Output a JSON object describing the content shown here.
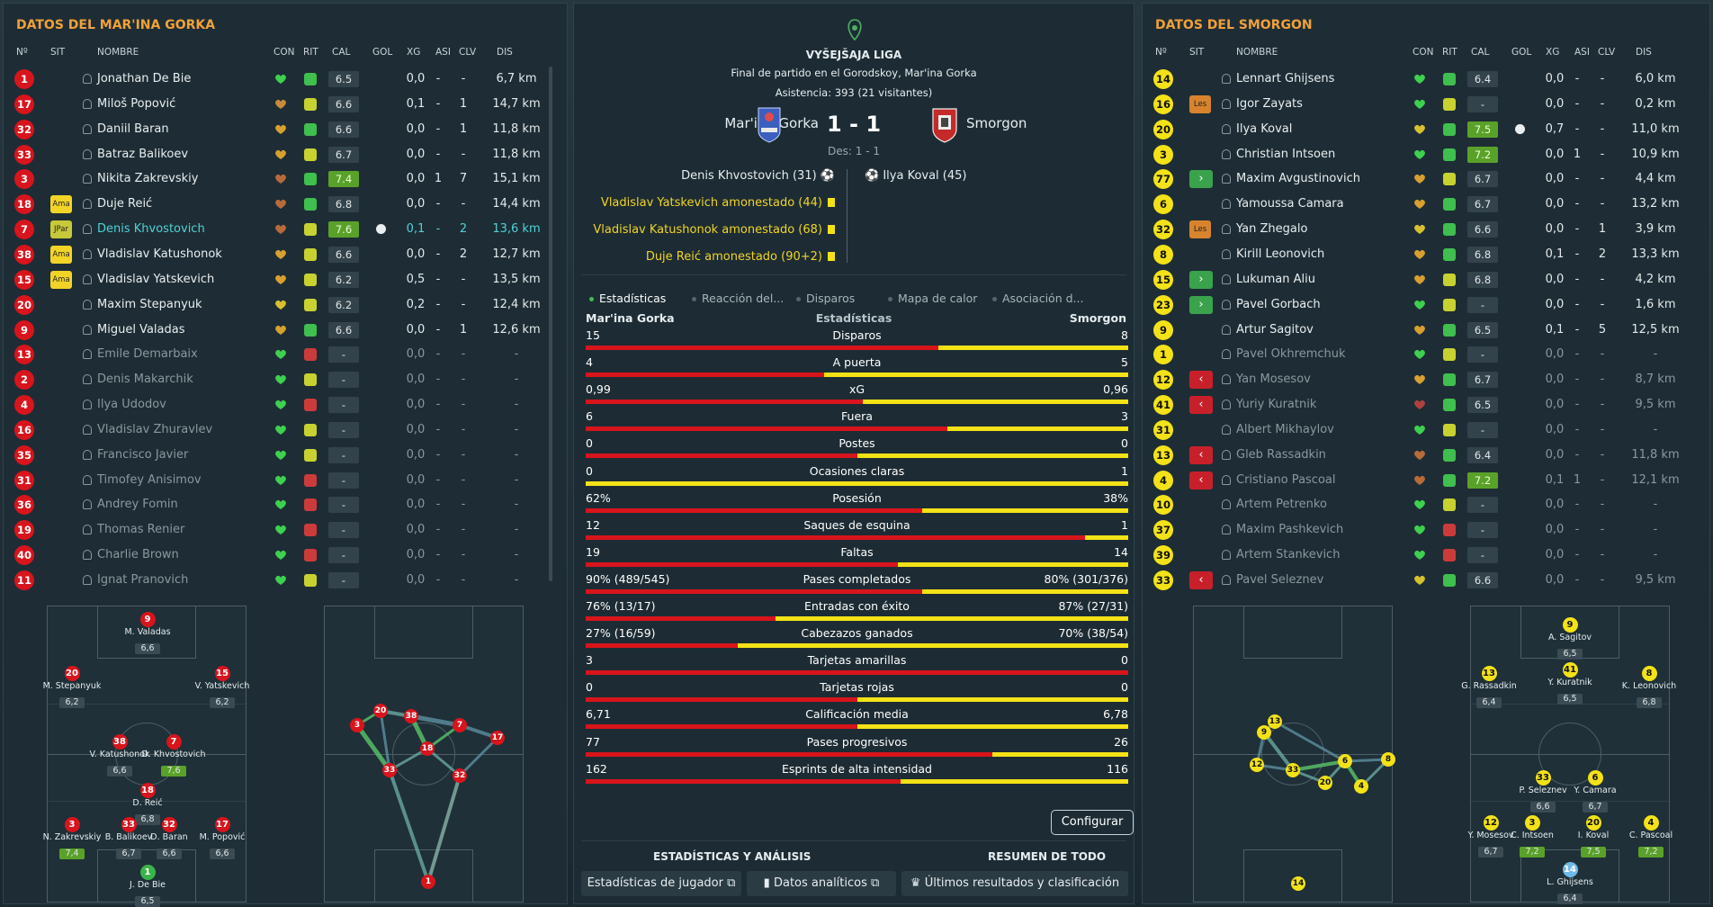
{
  "left": {
    "title": "DATOS DEL MAR'INA GORKA",
    "headers": [
      "Nº",
      "SIT",
      "NOMBRE",
      "CON",
      "RIT",
      "CAL",
      "GOL",
      "XG",
      "ASI",
      "CLV",
      "DIS"
    ],
    "players": [
      {
        "num": "1",
        "sit": "",
        "name": "Jonathan De Bie",
        "heart": "#3ed04f",
        "rit": "g",
        "cal": "6.5",
        "calg": false,
        "gol": false,
        "xg": "0,0",
        "asi": "-",
        "clv": "-",
        "dis": "6,7 km",
        "dim": false
      },
      {
        "num": "17",
        "sit": "",
        "name": "Miloš Popović",
        "heart": "#c98a3a",
        "rit": "yl",
        "cal": "6.6",
        "calg": false,
        "gol": false,
        "xg": "0,1",
        "asi": "-",
        "clv": "1",
        "dis": "14,7 km",
        "dim": false
      },
      {
        "num": "32",
        "sit": "",
        "name": "Daniil Baran",
        "heart": "#d7a02f",
        "rit": "g",
        "cal": "6.6",
        "calg": false,
        "gol": false,
        "xg": "0,0",
        "asi": "-",
        "clv": "1",
        "dis": "11,8 km",
        "dim": false
      },
      {
        "num": "33",
        "sit": "",
        "name": "Batraz Balikoev",
        "heart": "#d7a02f",
        "rit": "yl",
        "cal": "6.7",
        "calg": false,
        "gol": false,
        "xg": "0,0",
        "asi": "-",
        "clv": "-",
        "dis": "11,8 km",
        "dim": false
      },
      {
        "num": "3",
        "sit": "",
        "name": "Nikita Zakrevskiy",
        "heart": "#b86b3a",
        "rit": "g",
        "cal": "7.4",
        "calg": true,
        "gol": false,
        "xg": "0,0",
        "asi": "1",
        "clv": "7",
        "dis": "15,1 km",
        "dim": false
      },
      {
        "num": "18",
        "sit": "Ama",
        "name": "Duje Reić",
        "heart": "#b86b3a",
        "rit": "g",
        "cal": "6.8",
        "calg": false,
        "gol": false,
        "xg": "0,0",
        "asi": "-",
        "clv": "-",
        "dis": "14,4 km",
        "dim": false
      },
      {
        "num": "7",
        "sit": "JPar",
        "name": "Denis Khvostovich",
        "heart": "#b86b3a",
        "rit": "yl",
        "cal": "7.6",
        "calg": true,
        "gol": true,
        "xg": "0,1",
        "asi": "-",
        "clv": "2",
        "dis": "13,6 km",
        "dim": false,
        "sel": true
      },
      {
        "num": "38",
        "sit": "Ama",
        "name": "Vladislav Katushonok",
        "heart": "#d7a02f",
        "rit": "yl",
        "cal": "6.6",
        "calg": false,
        "gol": false,
        "xg": "0,0",
        "asi": "-",
        "clv": "2",
        "dis": "12,7 km",
        "dim": false
      },
      {
        "num": "15",
        "sit": "Ama",
        "name": "Vladislav Yatskevich",
        "heart": "#d7a02f",
        "rit": "yl",
        "cal": "6.2",
        "calg": false,
        "gol": false,
        "xg": "0,5",
        "asi": "-",
        "clv": "-",
        "dis": "13,5 km",
        "dim": false
      },
      {
        "num": "20",
        "sit": "",
        "name": "Maxim Stepanyuk",
        "heart": "#d7c02f",
        "rit": "yl",
        "cal": "6.2",
        "calg": false,
        "gol": false,
        "xg": "0,2",
        "asi": "-",
        "clv": "-",
        "dis": "12,4 km",
        "dim": false
      },
      {
        "num": "9",
        "sit": "",
        "name": "Miguel Valadas",
        "heart": "#d7a02f",
        "rit": "g",
        "cal": "6.6",
        "calg": false,
        "gol": false,
        "xg": "0,0",
        "asi": "-",
        "clv": "1",
        "dis": "12,6 km",
        "dim": false
      },
      {
        "num": "13",
        "sit": "",
        "name": "Emile Demarbaix",
        "heart": "#3ed04f",
        "rit": "r",
        "cal": "-",
        "calg": false,
        "gol": false,
        "xg": "0,0",
        "asi": "-",
        "clv": "-",
        "dis": "-",
        "dim": true
      },
      {
        "num": "2",
        "sit": "",
        "name": "Denis Makarchik",
        "heart": "#3ed04f",
        "rit": "yl",
        "cal": "-",
        "calg": false,
        "gol": false,
        "xg": "0,0",
        "asi": "-",
        "clv": "-",
        "dis": "-",
        "dim": true
      },
      {
        "num": "4",
        "sit": "",
        "name": "Ilya Udodov",
        "heart": "#3ed04f",
        "rit": "r",
        "cal": "-",
        "calg": false,
        "gol": false,
        "xg": "0,0",
        "asi": "-",
        "clv": "-",
        "dis": "-",
        "dim": true
      },
      {
        "num": "16",
        "sit": "",
        "name": "Vladislav Zhuravlev",
        "heart": "#3ed04f",
        "rit": "yl",
        "cal": "-",
        "calg": false,
        "gol": false,
        "xg": "0,0",
        "asi": "-",
        "clv": "-",
        "dis": "-",
        "dim": true
      },
      {
        "num": "35",
        "sit": "",
        "name": "Francisco Javier",
        "heart": "#3ed04f",
        "rit": "yl",
        "cal": "-",
        "calg": false,
        "gol": false,
        "xg": "0,0",
        "asi": "-",
        "clv": "-",
        "dis": "-",
        "dim": true
      },
      {
        "num": "31",
        "sit": "",
        "name": "Timofey Anisimov",
        "heart": "#3ed04f",
        "rit": "r",
        "cal": "-",
        "calg": false,
        "gol": false,
        "xg": "0,0",
        "asi": "-",
        "clv": "-",
        "dis": "-",
        "dim": true
      },
      {
        "num": "36",
        "sit": "",
        "name": "Andrey Fomin",
        "heart": "#3ed04f",
        "rit": "r",
        "cal": "-",
        "calg": false,
        "gol": false,
        "xg": "0,0",
        "asi": "-",
        "clv": "-",
        "dis": "-",
        "dim": true
      },
      {
        "num": "19",
        "sit": "",
        "name": "Thomas Renier",
        "heart": "#3ed04f",
        "rit": "r",
        "cal": "-",
        "calg": false,
        "gol": false,
        "xg": "0,0",
        "asi": "-",
        "clv": "-",
        "dis": "-",
        "dim": true
      },
      {
        "num": "40",
        "sit": "",
        "name": "Charlie Brown",
        "heart": "#3ed04f",
        "rit": "r",
        "cal": "-",
        "calg": false,
        "gol": false,
        "xg": "0,0",
        "asi": "-",
        "clv": "-",
        "dis": "-",
        "dim": true
      },
      {
        "num": "11",
        "sit": "",
        "name": "Ignat Pranovich",
        "heart": "#3ed04f",
        "rit": "yl",
        "cal": "-",
        "calg": false,
        "gol": false,
        "xg": "0,0",
        "asi": "-",
        "clv": "-",
        "dis": "-",
        "dim": true
      }
    ],
    "formation": [
      {
        "num": "9",
        "name": "M. Valadas",
        "rating": "6,6",
        "g": false
      },
      {
        "num": "20",
        "name": "M. Stepanyuk",
        "rating": "6,2",
        "g": false
      },
      {
        "num": "15",
        "name": "V. Yatskevich",
        "rating": "6,2",
        "g": false
      },
      {
        "num": "38",
        "name": "V. Katushonok",
        "rating": "6,6",
        "g": false
      },
      {
        "num": "7",
        "name": "D. Khvostovich",
        "rating": "7,6",
        "g": true
      },
      {
        "num": "18",
        "name": "D. Reić",
        "rating": "6,8",
        "g": false
      },
      {
        "num": "3",
        "name": "N. Zakrevskiy",
        "rating": "7,4",
        "g": true
      },
      {
        "num": "33",
        "name": "B. Balikoev",
        "rating": "6,7",
        "g": false
      },
      {
        "num": "32",
        "name": "D. Baran",
        "rating": "6,6",
        "g": false
      },
      {
        "num": "17",
        "name": "M. Popović",
        "rating": "6,6",
        "g": false
      },
      {
        "num": "1",
        "name": "J. De Bie",
        "rating": "6,5",
        "g": false
      }
    ],
    "network": [
      "3",
      "20",
      "38",
      "7",
      "17",
      "18",
      "33",
      "32",
      "1"
    ]
  },
  "right": {
    "title": "DATOS DEL SMORGON",
    "headers": [
      "Nº",
      "SIT",
      "NOMBRE",
      "CON",
      "RIT",
      "CAL",
      "GOL",
      "XG",
      "ASI",
      "CLV",
      "DIS"
    ],
    "players": [
      {
        "num": "14",
        "sit": "",
        "name": "Lennart Ghijsens",
        "heart": "#3ed04f",
        "rit": "g",
        "cal": "6.4",
        "calg": false,
        "gol": false,
        "xg": "0,0",
        "asi": "-",
        "clv": "-",
        "dis": "6,0 km",
        "dim": false
      },
      {
        "num": "16",
        "sit": "Les",
        "name": "Igor Zayats",
        "heart": "#3ed04f",
        "rit": "yl",
        "cal": "-",
        "calg": false,
        "gol": false,
        "xg": "0,0",
        "asi": "-",
        "clv": "-",
        "dis": "0,2 km",
        "dim": false
      },
      {
        "num": "20",
        "sit": "",
        "name": "Ilya Koval",
        "heart": "#d7c02f",
        "rit": "g",
        "cal": "7.5",
        "calg": true,
        "gol": true,
        "xg": "0,7",
        "asi": "-",
        "clv": "-",
        "dis": "11,0 km",
        "dim": false
      },
      {
        "num": "3",
        "sit": "",
        "name": "Christian Intsoen",
        "heart": "#3ed04f",
        "rit": "g",
        "cal": "7.2",
        "calg": true,
        "gol": false,
        "xg": "0,0",
        "asi": "1",
        "clv": "-",
        "dis": "10,9 km",
        "dim": false
      },
      {
        "num": "77",
        "sit": "in",
        "name": "Maxim Avgustinovich",
        "heart": "#d7a02f",
        "rit": "yl",
        "cal": "6.7",
        "calg": false,
        "gol": false,
        "xg": "0,0",
        "asi": "-",
        "clv": "-",
        "dis": "4,4 km",
        "dim": false
      },
      {
        "num": "6",
        "sit": "",
        "name": "Yamoussa Camara",
        "heart": "#d7a02f",
        "rit": "g",
        "cal": "6.7",
        "calg": false,
        "gol": false,
        "xg": "0,0",
        "asi": "-",
        "clv": "-",
        "dis": "13,2 km",
        "dim": false
      },
      {
        "num": "32",
        "sit": "Les",
        "name": "Yan Zhegalo",
        "heart": "#d7c02f",
        "rit": "g",
        "cal": "6.6",
        "calg": false,
        "gol": false,
        "xg": "0,0",
        "asi": "-",
        "clv": "1",
        "dis": "3,9 km",
        "dim": false
      },
      {
        "num": "8",
        "sit": "",
        "name": "Kirill Leonovich",
        "heart": "#d7a02f",
        "rit": "g",
        "cal": "6.8",
        "calg": false,
        "gol": false,
        "xg": "0,1",
        "asi": "-",
        "clv": "2",
        "dis": "13,3 km",
        "dim": false
      },
      {
        "num": "15",
        "sit": "in",
        "name": "Lukuman Aliu",
        "heart": "#d7a02f",
        "rit": "yl",
        "cal": "6.8",
        "calg": false,
        "gol": false,
        "xg": "0,0",
        "asi": "-",
        "clv": "-",
        "dis": "4,2 km",
        "dim": false
      },
      {
        "num": "23",
        "sit": "in",
        "name": "Pavel Gorbach",
        "heart": "#3ed04f",
        "rit": "yl",
        "cal": "-",
        "calg": false,
        "gol": false,
        "xg": "0,0",
        "asi": "-",
        "clv": "-",
        "dis": "1,6 km",
        "dim": false
      },
      {
        "num": "9",
        "sit": "",
        "name": "Artur Sagitov",
        "heart": "#d7a02f",
        "rit": "g",
        "cal": "6.5",
        "calg": false,
        "gol": false,
        "xg": "0,1",
        "asi": "-",
        "clv": "5",
        "dis": "12,5 km",
        "dim": false
      },
      {
        "num": "1",
        "sit": "",
        "name": "Pavel Okhremchuk",
        "heart": "#3ed04f",
        "rit": "yl",
        "cal": "-",
        "calg": false,
        "gol": false,
        "xg": "0,0",
        "asi": "-",
        "clv": "-",
        "dis": "-",
        "dim": true
      },
      {
        "num": "12",
        "sit": "out",
        "name": "Yan Mosesov",
        "heart": "#d7a02f",
        "rit": "g",
        "cal": "6.7",
        "calg": false,
        "gol": false,
        "xg": "0,0",
        "asi": "-",
        "clv": "-",
        "dis": "8,7 km",
        "dim": true
      },
      {
        "num": "41",
        "sit": "out",
        "name": "Yuriy Kuratnik",
        "heart": "#b04040",
        "rit": "g",
        "cal": "6.5",
        "calg": false,
        "gol": false,
        "xg": "0,0",
        "asi": "-",
        "clv": "-",
        "dis": "9,5 km",
        "dim": true
      },
      {
        "num": "31",
        "sit": "",
        "name": "Albert Mikhaylov",
        "heart": "#3ed04f",
        "rit": "yl",
        "cal": "-",
        "calg": false,
        "gol": false,
        "xg": "0,0",
        "asi": "-",
        "clv": "-",
        "dis": "-",
        "dim": true
      },
      {
        "num": "13",
        "sit": "out",
        "name": "Gleb Rassadkin",
        "heart": "#b86b3a",
        "rit": "g",
        "cal": "6.4",
        "calg": false,
        "gol": false,
        "xg": "0,0",
        "asi": "-",
        "clv": "-",
        "dis": "11,8 km",
        "dim": true
      },
      {
        "num": "4",
        "sit": "out",
        "name": "Cristiano Pascoal",
        "heart": "#b86b3a",
        "rit": "g",
        "cal": "7.2",
        "calg": true,
        "gol": false,
        "xg": "0,1",
        "asi": "1",
        "clv": "-",
        "dis": "12,1 km",
        "dim": true
      },
      {
        "num": "10",
        "sit": "",
        "name": "Artem Petrenko",
        "heart": "#3ed04f",
        "rit": "yl",
        "cal": "-",
        "calg": false,
        "gol": false,
        "xg": "0,0",
        "asi": "-",
        "clv": "-",
        "dis": "-",
        "dim": true
      },
      {
        "num": "37",
        "sit": "",
        "name": "Maxim Pashkevich",
        "heart": "#3ed04f",
        "rit": "r",
        "cal": "-",
        "calg": false,
        "gol": false,
        "xg": "0,0",
        "asi": "-",
        "clv": "-",
        "dis": "-",
        "dim": true
      },
      {
        "num": "39",
        "sit": "",
        "name": "Artem Stankevich",
        "heart": "#3ed04f",
        "rit": "r",
        "cal": "-",
        "calg": false,
        "gol": false,
        "xg": "0,0",
        "asi": "-",
        "clv": "-",
        "dis": "-",
        "dim": true
      },
      {
        "num": "33",
        "sit": "out",
        "name": "Pavel Seleznev",
        "heart": "#d7c02f",
        "rit": "g",
        "cal": "6.6",
        "calg": false,
        "gol": false,
        "xg": "0,0",
        "asi": "-",
        "clv": "-",
        "dis": "9,5 km",
        "dim": true
      }
    ],
    "formation": [
      {
        "num": "9",
        "name": "A. Sagitov",
        "rating": "6,5",
        "g": false
      },
      {
        "num": "13",
        "name": "G. Rassadkin",
        "rating": "6,4",
        "g": false
      },
      {
        "num": "41",
        "name": "Y. Kuratnik",
        "rating": "6,5",
        "g": false
      },
      {
        "num": "8",
        "name": "K. Leonovich",
        "rating": "6,8",
        "g": false
      },
      {
        "num": "33",
        "name": "P. Seleznev",
        "rating": "6,6",
        "g": false
      },
      {
        "num": "6",
        "name": "Y. Camara",
        "rating": "6,7",
        "g": false
      },
      {
        "num": "12",
        "name": "Y. Mosesov",
        "rating": "6,7",
        "g": false
      },
      {
        "num": "3",
        "name": "C. Intsoen",
        "rating": "7,2",
        "g": true
      },
      {
        "num": "20",
        "name": "I. Koval",
        "rating": "7,5",
        "g": true
      },
      {
        "num": "4",
        "name": "C. Pascoal",
        "rating": "7,2",
        "g": true
      },
      {
        "num": "14",
        "name": "L. Ghijsens",
        "rating": "6,4",
        "g": false
      }
    ],
    "network": [
      "9",
      "13",
      "12",
      "33",
      "6",
      "20",
      "4",
      "8",
      "14"
    ]
  },
  "center": {
    "league": "VYŠEJŠAJA LIGA",
    "subtitle": "Final de partido en el Gorodskoy, Mar'ina Gorka",
    "attendance": "Asistencia: 393 (21 visitantes)",
    "home": "Mar'ina Gorka",
    "away": "Smorgon",
    "score": "1 - 1",
    "ht": "Des: 1 - 1",
    "home_events": [
      {
        "text": "Denis Khvostovich (31)",
        "type": "goal"
      },
      {
        "text": "Vladislav Yatskevich amonestado (44)",
        "type": "card"
      },
      {
        "text": "Vladislav Katushonok amonestado (68)",
        "type": "card"
      },
      {
        "text": "Duje Reić amonestado (90+2)",
        "type": "card"
      }
    ],
    "away_events": [
      {
        "text": "Ilya Koval (45)",
        "type": "goal"
      }
    ],
    "tabs": [
      "Estadísticas",
      "Reacción del...",
      "Disparos",
      "Mapa de calor",
      "Asociación d..."
    ],
    "stats_header": {
      "home": "Mar'ina Gorka",
      "mid": "Estadísticas",
      "away": "Smorgon"
    },
    "stats": [
      {
        "label": "Disparos",
        "h": "15",
        "a": "8",
        "p": 0.65
      },
      {
        "label": "A puerta",
        "h": "4",
        "a": "5",
        "p": 0.44
      },
      {
        "label": "xG",
        "h": "0,99",
        "a": "0,96",
        "p": 0.51
      },
      {
        "label": "Fuera",
        "h": "6",
        "a": "3",
        "p": 0.667
      },
      {
        "label": "Postes",
        "h": "0",
        "a": "0",
        "p": 0.5
      },
      {
        "label": "Ocasiones claras",
        "h": "0",
        "a": "1",
        "p": 0.0
      },
      {
        "label": "Posesión",
        "h": "62%",
        "a": "38%",
        "p": 0.62
      },
      {
        "label": "Saques de esquina",
        "h": "12",
        "a": "1",
        "p": 0.92
      },
      {
        "label": "Faltas",
        "h": "19",
        "a": "14",
        "p": 0.576
      },
      {
        "label": "Pases completados",
        "h": "90% (489/545)",
        "a": "80% (301/376)",
        "p": 0.62
      },
      {
        "label": "Entradas con éxito",
        "h": "76% (13/17)",
        "a": "87% (27/31)",
        "p": 0.35
      },
      {
        "label": "Cabezazos ganados",
        "h": "27% (16/59)",
        "a": "70% (38/54)",
        "p": 0.28
      },
      {
        "label": "Tarjetas amarillas",
        "h": "3",
        "a": "0",
        "p": 1.0
      },
      {
        "label": "Tarjetas rojas",
        "h": "0",
        "a": "0",
        "p": 0.5
      },
      {
        "label": "Calificación media",
        "h": "6,71",
        "a": "6,78",
        "p": 0.5
      },
      {
        "label": "Pases progresivos",
        "h": "77",
        "a": "26",
        "p": 0.75
      },
      {
        "label": "Esprints de alta intensidad",
        "h": "162",
        "a": "116",
        "p": 0.58
      }
    ],
    "configure": "Configurar",
    "section_left": "ESTADÍSTICAS Y ANÁLISIS",
    "section_right": "RESUMEN DE TODO",
    "btn1": "Estadísticas de jugador",
    "btn2": "Datos analíticos",
    "btn3": "Últimos resultados y clasificación",
    "colors": {
      "home": "#d8141c",
      "away": "#f3e217"
    }
  }
}
